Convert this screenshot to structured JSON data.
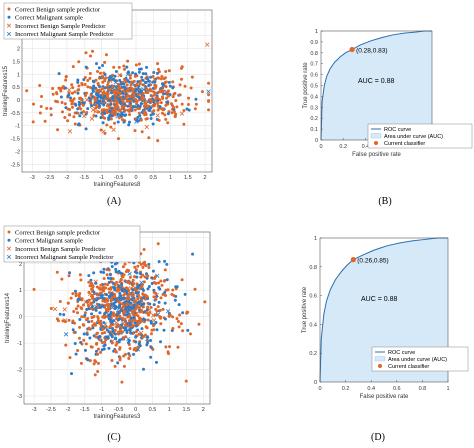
{
  "colors": {
    "benign": "#e0662a",
    "malignant": "#2b7bc7",
    "roc_line": "#2b6fb0",
    "roc_fill": "#d6e9f8",
    "current": "#e0662a"
  },
  "chart_data": [
    {
      "panel": "(A)",
      "type": "scatter",
      "xlabel": "trainingFeatures8",
      "ylabel": "trainingFeatures15",
      "xlim": [
        -3.3,
        2.2
      ],
      "ylim": [
        -2.8,
        3.5
      ],
      "xticks": [
        "-3",
        "-2.5",
        "-2",
        "-1.5",
        "-1",
        "-0.5",
        "0",
        "0.5",
        "1",
        "1.5",
        "2"
      ],
      "yticks": [
        "3",
        "2.5",
        "2",
        "1.5",
        "1",
        "0.5",
        "0",
        "-0.5",
        "-1",
        "-1.5",
        "-2",
        "-2.5"
      ],
      "grid": true,
      "legend_position": "top-left",
      "series": [
        {
          "name": "Correct Benign sample predictor",
          "marker": "dot",
          "color": "benign"
        },
        {
          "name": "Correct Malignant sample",
          "marker": "dot",
          "color": "malignant"
        },
        {
          "name": "Incorrect Benign Sample Predictor",
          "marker": "x",
          "color": "benign"
        },
        {
          "name": "Incorrect Malignant Sample Predictor",
          "marker": "x",
          "color": "malignant"
        }
      ],
      "cluster": {
        "center_x": -0.4,
        "center_y": 0.1,
        "spread_x": 1.0,
        "spread_y": 0.55
      }
    },
    {
      "panel": "(B)",
      "type": "line",
      "xlabel": "False positive rate",
      "ylabel": "True positive rate",
      "xlim": [
        0,
        1
      ],
      "ylim": [
        0,
        1
      ],
      "xticks": [
        "0",
        "0.2",
        "0.4",
        "0.6",
        "0.8",
        "1"
      ],
      "yticks": [
        "0",
        "0.1",
        "0.2",
        "0.3",
        "0.4",
        "0.5",
        "0.6",
        "0.7",
        "0.8",
        "0.9",
        "1"
      ],
      "auc_text": "AUC = 0.88",
      "current_point": {
        "x": 0.28,
        "y": 0.83,
        "label": "(0.28,0.83)"
      },
      "legend_position": "bottom-right",
      "legend": [
        "ROC curve",
        "Area under curve (AUC)",
        "Current classifier"
      ],
      "roc": [
        [
          0,
          0
        ],
        [
          0.01,
          0.35
        ],
        [
          0.03,
          0.5
        ],
        [
          0.05,
          0.58
        ],
        [
          0.08,
          0.65
        ],
        [
          0.12,
          0.71
        ],
        [
          0.17,
          0.76
        ],
        [
          0.22,
          0.8
        ],
        [
          0.28,
          0.83
        ],
        [
          0.35,
          0.87
        ],
        [
          0.45,
          0.91
        ],
        [
          0.55,
          0.94
        ],
        [
          0.65,
          0.965
        ],
        [
          0.75,
          0.98
        ],
        [
          0.85,
          0.99
        ],
        [
          0.93,
          1.0
        ],
        [
          1,
          1
        ]
      ]
    },
    {
      "panel": "(C)",
      "type": "scatter",
      "xlabel": "trainingFeatures3",
      "ylabel": "trainingFeatures14",
      "xlim": [
        -3.3,
        2.2
      ],
      "ylim": [
        -3.3,
        3.2
      ],
      "xticks": [
        "-3",
        "-2.5",
        "-2",
        "-1.5",
        "-1",
        "-0.5",
        "0",
        "0.5",
        "1",
        "1.5",
        "2"
      ],
      "yticks": [
        "3",
        "2",
        "1",
        "0",
        "-1",
        "-2",
        "-3"
      ],
      "grid": true,
      "legend_position": "top-left",
      "series": [
        {
          "name": "Correct Benign sample predictor",
          "marker": "dot",
          "color": "benign"
        },
        {
          "name": "Correct Malignant sample",
          "marker": "dot",
          "color": "malignant"
        },
        {
          "name": "Incorrect Benign Sample Predictor",
          "marker": "x",
          "color": "benign"
        },
        {
          "name": "Incorrect Malignant Sample Predictor",
          "marker": "x",
          "color": "malignant"
        }
      ],
      "cluster": {
        "center_x": -0.4,
        "center_y": 0.3,
        "spread_x": 0.85,
        "spread_y": 0.95
      }
    },
    {
      "panel": "(D)",
      "type": "line",
      "xlabel": "False positive rate",
      "ylabel": "True positive rate",
      "xlim": [
        0,
        1
      ],
      "ylim": [
        0,
        1
      ],
      "xticks": [
        "0",
        "0.2",
        "0.4",
        "0.6",
        "0.8",
        "1"
      ],
      "yticks": [
        "0",
        "0.2",
        "0.4",
        "0.6",
        "0.8",
        "1"
      ],
      "auc_text": "AUC = 0.88",
      "current_point": {
        "x": 0.26,
        "y": 0.85,
        "label": "(0.26,0.85)"
      },
      "legend_position": "bottom-right",
      "legend": [
        "ROC curve",
        "Area under curve (AUC)",
        "Current classifier"
      ],
      "roc": [
        [
          0,
          0
        ],
        [
          0.01,
          0.3
        ],
        [
          0.03,
          0.47
        ],
        [
          0.05,
          0.56
        ],
        [
          0.08,
          0.64
        ],
        [
          0.12,
          0.71
        ],
        [
          0.17,
          0.77
        ],
        [
          0.21,
          0.81
        ],
        [
          0.26,
          0.85
        ],
        [
          0.33,
          0.88
        ],
        [
          0.42,
          0.915
        ],
        [
          0.52,
          0.945
        ],
        [
          0.62,
          0.965
        ],
        [
          0.72,
          0.98
        ],
        [
          0.82,
          0.99
        ],
        [
          0.92,
          1.0
        ],
        [
          1,
          1
        ]
      ]
    }
  ]
}
